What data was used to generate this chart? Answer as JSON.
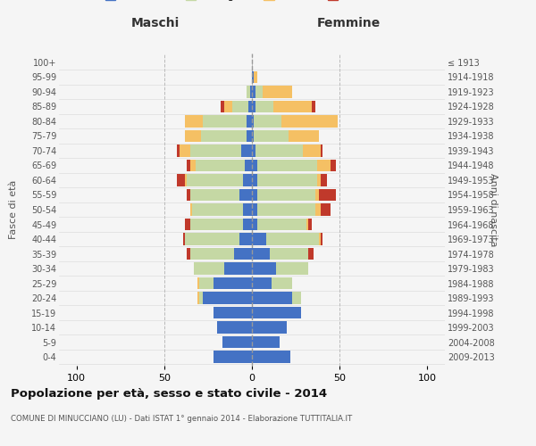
{
  "age_groups": [
    "0-4",
    "5-9",
    "10-14",
    "15-19",
    "20-24",
    "25-29",
    "30-34",
    "35-39",
    "40-44",
    "45-49",
    "50-54",
    "55-59",
    "60-64",
    "65-69",
    "70-74",
    "75-79",
    "80-84",
    "85-89",
    "90-94",
    "95-99",
    "100+"
  ],
  "birth_years": [
    "2009-2013",
    "2004-2008",
    "1999-2003",
    "1994-1998",
    "1989-1993",
    "1984-1988",
    "1979-1983",
    "1974-1978",
    "1969-1973",
    "1964-1968",
    "1959-1963",
    "1954-1958",
    "1949-1953",
    "1944-1948",
    "1939-1943",
    "1934-1938",
    "1929-1933",
    "1924-1928",
    "1919-1923",
    "1914-1918",
    "≤ 1913"
  ],
  "colors": {
    "celibi": "#4472c4",
    "coniugati": "#c5d8a4",
    "vedovi": "#f5c064",
    "divorziati": "#c0392b"
  },
  "maschi": {
    "celibi": [
      22,
      17,
      20,
      22,
      28,
      22,
      16,
      10,
      7,
      5,
      5,
      7,
      5,
      4,
      6,
      3,
      3,
      2,
      1,
      0,
      0
    ],
    "coniugati": [
      0,
      0,
      0,
      0,
      2,
      8,
      17,
      25,
      31,
      30,
      29,
      28,
      32,
      28,
      29,
      26,
      25,
      9,
      2,
      0,
      0
    ],
    "vedovi": [
      0,
      0,
      0,
      0,
      1,
      1,
      0,
      0,
      0,
      0,
      1,
      0,
      1,
      3,
      6,
      9,
      10,
      5,
      0,
      0,
      0
    ],
    "divorziati": [
      0,
      0,
      0,
      0,
      0,
      0,
      0,
      2,
      1,
      3,
      0,
      2,
      5,
      2,
      2,
      0,
      0,
      2,
      0,
      0,
      0
    ]
  },
  "femmine": {
    "celibi": [
      22,
      16,
      20,
      28,
      23,
      11,
      14,
      10,
      8,
      3,
      3,
      3,
      3,
      3,
      2,
      1,
      1,
      2,
      2,
      1,
      0
    ],
    "coniugati": [
      0,
      0,
      0,
      0,
      5,
      12,
      18,
      22,
      30,
      28,
      33,
      33,
      34,
      34,
      27,
      20,
      16,
      10,
      4,
      0,
      0
    ],
    "vedovi": [
      0,
      0,
      0,
      0,
      0,
      0,
      0,
      0,
      1,
      1,
      3,
      2,
      2,
      8,
      10,
      17,
      32,
      22,
      17,
      2,
      0
    ],
    "divorziati": [
      0,
      0,
      0,
      0,
      0,
      0,
      0,
      3,
      1,
      2,
      6,
      10,
      4,
      3,
      1,
      0,
      0,
      2,
      0,
      0,
      0
    ]
  },
  "title": "Popolazione per età, sesso e stato civile - 2014",
  "subtitle": "COMUNE DI MINUCCIANO (LU) - Dati ISTAT 1° gennaio 2014 - Elaborazione TUTTITALIA.IT",
  "xlabel_left": "Maschi",
  "xlabel_right": "Femmine",
  "ylabel_left": "Fasce di età",
  "ylabel_right": "Anni di nascita",
  "xlim": 110,
  "xticks": [
    -100,
    -50,
    0,
    50,
    100
  ],
  "xtick_labels": [
    "100",
    "50",
    "0",
    "50",
    "100"
  ],
  "bg_color": "#f5f5f5",
  "grid_color": "#cccccc"
}
